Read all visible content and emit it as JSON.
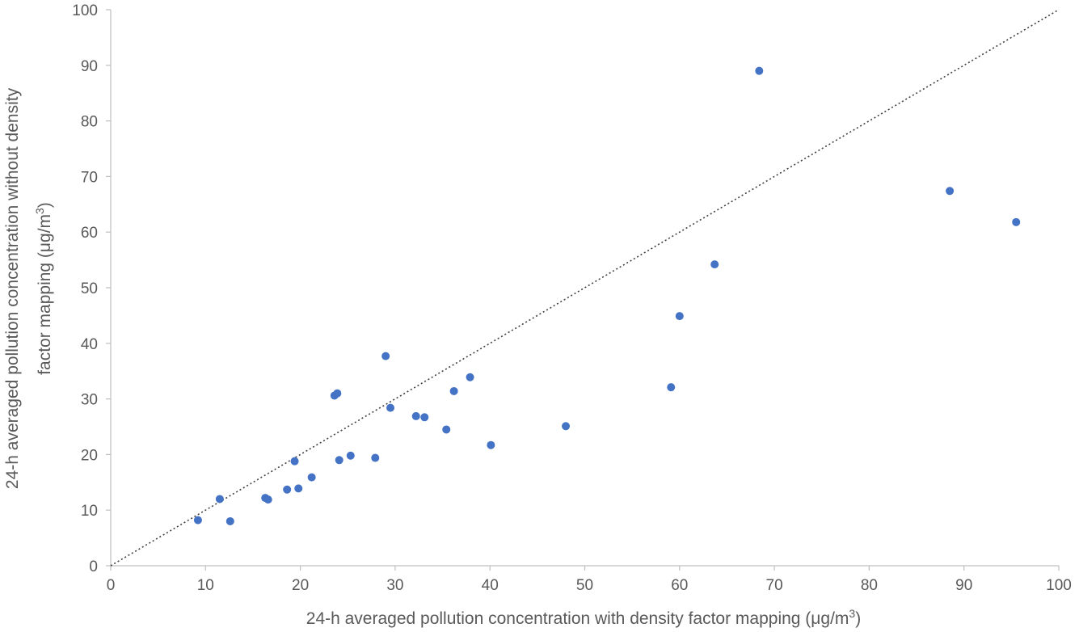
{
  "chart_data": {
    "type": "scatter",
    "xlabel": "24-h averaged pollution concentration with density factor mapping (μg/m",
    "xlabel_sup": "3",
    "xlabel_end": ")",
    "ylabel_line1": "24-h averaged pollution concentration without density",
    "ylabel_line2": "factor mapping (μg/m",
    "ylabel_sup": "3",
    "ylabel_end": ")",
    "xlim": [
      0,
      100
    ],
    "ylim": [
      0,
      100
    ],
    "xticks": [
      "0",
      "10",
      "20",
      "30",
      "40",
      "50",
      "60",
      "70",
      "80",
      "90",
      "100"
    ],
    "yticks": [
      "0",
      "10",
      "20",
      "30",
      "40",
      "50",
      "60",
      "70",
      "80",
      "90",
      "100"
    ],
    "grid": false,
    "reference_line": {
      "style": "dotted",
      "from": [
        0,
        0
      ],
      "to": [
        100,
        100
      ]
    },
    "marker_color": "#4472C4",
    "points": [
      {
        "x": 9.2,
        "y": 8.2
      },
      {
        "x": 11.5,
        "y": 12.0
      },
      {
        "x": 12.6,
        "y": 8.0
      },
      {
        "x": 16.3,
        "y": 12.2
      },
      {
        "x": 16.6,
        "y": 11.9
      },
      {
        "x": 18.6,
        "y": 13.7
      },
      {
        "x": 19.4,
        "y": 18.8
      },
      {
        "x": 19.8,
        "y": 13.9
      },
      {
        "x": 21.2,
        "y": 15.9
      },
      {
        "x": 23.6,
        "y": 30.6
      },
      {
        "x": 23.9,
        "y": 31.0
      },
      {
        "x": 24.1,
        "y": 19.0
      },
      {
        "x": 25.3,
        "y": 19.8
      },
      {
        "x": 27.9,
        "y": 19.4
      },
      {
        "x": 29.0,
        "y": 37.7
      },
      {
        "x": 29.5,
        "y": 28.4
      },
      {
        "x": 32.2,
        "y": 26.9
      },
      {
        "x": 33.1,
        "y": 26.7
      },
      {
        "x": 35.4,
        "y": 24.5
      },
      {
        "x": 36.2,
        "y": 31.4
      },
      {
        "x": 37.9,
        "y": 33.9
      },
      {
        "x": 40.1,
        "y": 21.7
      },
      {
        "x": 48.0,
        "y": 25.1
      },
      {
        "x": 59.1,
        "y": 32.1
      },
      {
        "x": 60.0,
        "y": 44.9
      },
      {
        "x": 63.7,
        "y": 54.2
      },
      {
        "x": 68.4,
        "y": 89.0
      },
      {
        "x": 88.5,
        "y": 67.4
      },
      {
        "x": 95.5,
        "y": 61.8
      }
    ]
  }
}
